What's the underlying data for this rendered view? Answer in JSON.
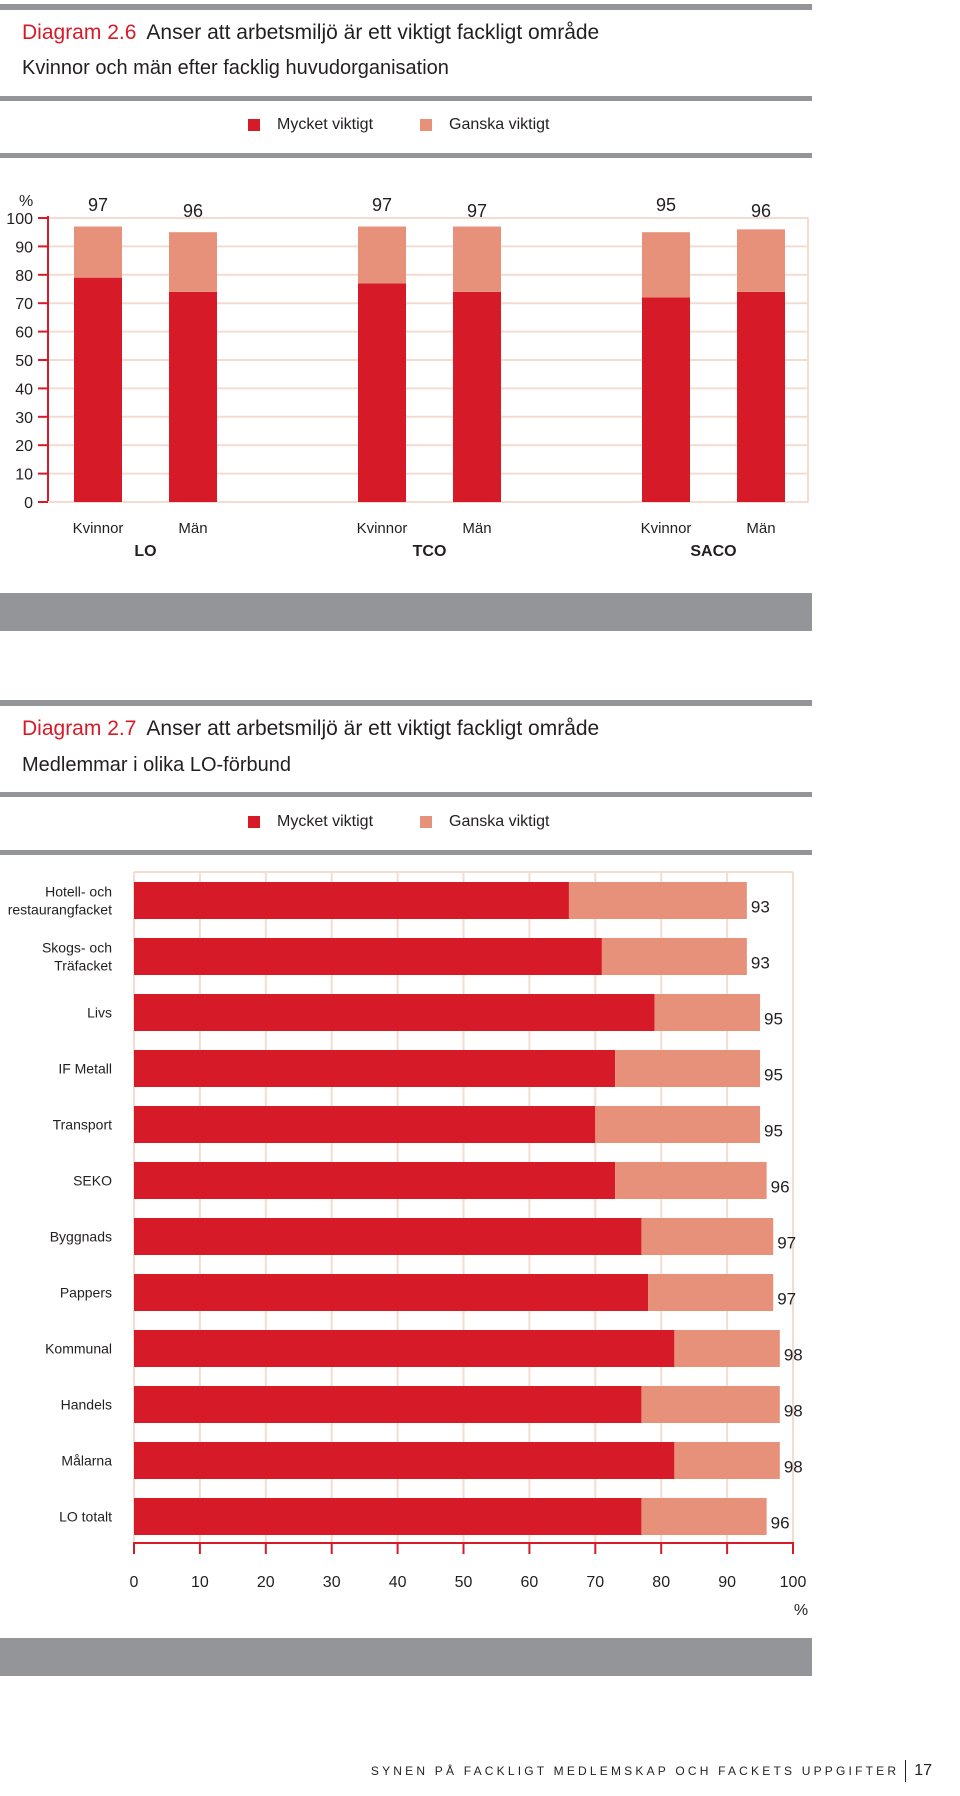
{
  "colors": {
    "mycket": "#d71a28",
    "ganska": "#e8917a",
    "grid": "#f3dcd1",
    "axis": "#d71a28",
    "rule": "#949599"
  },
  "diagram1": {
    "number": "Diagram 2.6",
    "title": "Anser att arbetsmiljö är ett viktigt fackligt område",
    "subtitle": "Kvinnor och män efter facklig huvudorganisation",
    "legend": [
      "Mycket viktigt",
      "Ganska viktigt"
    ]
  },
  "diagram2": {
    "number": "Diagram 2.7",
    "title": "Anser att arbetsmiljö är ett viktigt fackligt område",
    "subtitle": "Medlemmar i olika LO-förbund",
    "legend": [
      "Mycket viktigt",
      "Ganska viktigt"
    ]
  },
  "chart_data": [
    {
      "type": "bar",
      "orientation": "vertical",
      "stacked": true,
      "ylabel": "%",
      "ylim": [
        0,
        100
      ],
      "yticks": [
        0,
        10,
        20,
        30,
        40,
        50,
        60,
        70,
        80,
        90,
        100
      ],
      "grid": true,
      "groups": [
        {
          "label": "LO",
          "categories": [
            "Kvinnor",
            "Män"
          ]
        },
        {
          "label": "TCO",
          "categories": [
            "Kvinnor",
            "Män"
          ]
        },
        {
          "label": "SACO",
          "categories": [
            "Kvinnor",
            "Män"
          ]
        }
      ],
      "series": [
        {
          "name": "Mycket viktigt",
          "values": [
            79,
            74,
            77,
            74,
            72,
            74
          ]
        },
        {
          "name": "Ganska viktigt",
          "values": [
            18,
            21,
            20,
            23,
            23,
            22
          ]
        }
      ],
      "totals": [
        97,
        96,
        97,
        97,
        95,
        96
      ]
    },
    {
      "type": "bar",
      "orientation": "horizontal",
      "stacked": true,
      "xlabel": "%",
      "xlim": [
        0,
        100
      ],
      "xticks": [
        0,
        10,
        20,
        30,
        40,
        50,
        60,
        70,
        80,
        90,
        100
      ],
      "grid": true,
      "categories": [
        [
          "Hotell- och",
          "restaurangfacket"
        ],
        [
          "Skogs- och",
          "Träfacket"
        ],
        [
          "Livs"
        ],
        [
          "IF Metall"
        ],
        [
          "Transport"
        ],
        [
          "SEKO"
        ],
        [
          "Byggnads"
        ],
        [
          "Pappers"
        ],
        [
          "Kommunal"
        ],
        [
          "Handels"
        ],
        [
          "Målarna"
        ],
        [
          "LO totalt"
        ]
      ],
      "series": [
        {
          "name": "Mycket viktigt",
          "values": [
            66,
            71,
            79,
            73,
            70,
            73,
            77,
            78,
            82,
            77,
            82,
            77
          ]
        },
        {
          "name": "Ganska viktigt",
          "values": [
            27,
            22,
            16,
            22,
            25,
            23,
            20,
            19,
            16,
            21,
            16,
            19
          ]
        }
      ],
      "totals": [
        93,
        93,
        95,
        95,
        95,
        96,
        97,
        97,
        98,
        98,
        98,
        96
      ]
    }
  ],
  "footer": {
    "text": "SYNEN PÅ FACKLIGT MEDLEMSKAP OCH FACKETS UPPGIFTER",
    "page": "17"
  }
}
